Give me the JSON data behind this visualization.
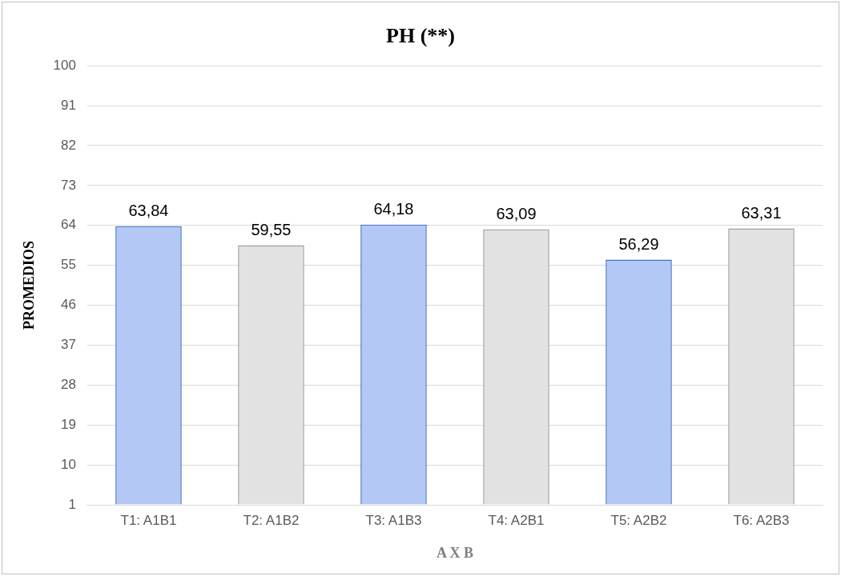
{
  "chart_data": {
    "type": "bar",
    "title": "PH (**)",
    "xlabel": "A X B",
    "ylabel": "PROMEDIOS",
    "categories": [
      "T1: A1B1",
      "T2: A1B2",
      "T3: A1B3",
      "T4: A2B1",
      "T5: A2B2",
      "T6: A2B3"
    ],
    "values": [
      63.84,
      59.55,
      64.18,
      63.09,
      56.29,
      63.31
    ],
    "colors": [
      "#b4c8f6",
      "#e2e2e2",
      "#b4c8f6",
      "#e2e2e2",
      "#b4c8f6",
      "#e2e2e2"
    ],
    "ylim": [
      1,
      100
    ],
    "yticks": [
      1,
      10,
      19,
      28,
      37,
      46,
      55,
      64,
      73,
      82,
      91,
      100
    ],
    "value_labels": [
      "63,84",
      "59,55",
      "64,18",
      "63,09",
      "56,29",
      "63,31"
    ],
    "grid": "y",
    "legend": false
  }
}
